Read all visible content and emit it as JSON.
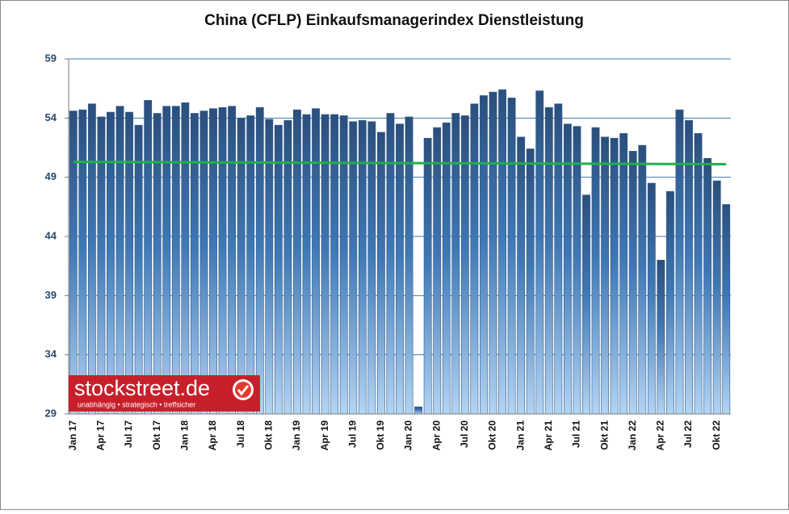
{
  "chart_data": {
    "type": "bar",
    "title": "China (CFLP) Einkaufsmanagerindex Dienstleistung",
    "categories": [
      "Jan 17",
      null,
      null,
      "Apr 17",
      null,
      null,
      "Jul 17",
      null,
      null,
      "Okt 17",
      null,
      null,
      "Jan 18",
      null,
      null,
      "Apr 18",
      null,
      null,
      "Jul 18",
      null,
      null,
      "Okt 18",
      null,
      null,
      "Jan 19",
      null,
      null,
      "Apr 19",
      null,
      null,
      "Jul 19",
      null,
      null,
      "Okt 19",
      null,
      null,
      "Jan 20",
      null,
      null,
      "Apr 20",
      null,
      null,
      "Jul 20",
      null,
      null,
      "Okt 20",
      null,
      null,
      "Jan 21",
      null,
      null,
      "Apr 21",
      null,
      null,
      "Jul 21",
      null,
      null,
      "Okt 21",
      null,
      null,
      "Jan 22",
      null,
      null,
      "Apr 22",
      null,
      null,
      "Jul 22",
      null,
      null,
      "Okt 22",
      null
    ],
    "values": [
      54.6,
      54.7,
      55.2,
      54.1,
      54.5,
      55.0,
      54.5,
      53.4,
      55.5,
      54.4,
      55.0,
      55.0,
      55.3,
      54.4,
      54.6,
      54.8,
      54.9,
      55.0,
      54.0,
      54.2,
      54.9,
      53.9,
      53.4,
      53.8,
      54.7,
      54.3,
      54.8,
      54.3,
      54.3,
      54.2,
      53.7,
      53.8,
      53.7,
      52.8,
      54.4,
      53.5,
      54.1,
      29.6,
      52.3,
      53.2,
      53.6,
      54.4,
      54.2,
      55.2,
      55.9,
      56.2,
      56.4,
      55.7,
      52.4,
      51.4,
      56.3,
      54.9,
      55.2,
      53.5,
      53.3,
      47.5,
      53.2,
      52.4,
      52.3,
      52.7,
      51.2,
      51.7,
      48.5,
      42.0,
      47.8,
      54.7,
      53.8,
      52.7,
      50.6,
      48.7,
      46.7
    ],
    "color": "#2d5b8c",
    "trend": {
      "color": "#1fb04a",
      "values": [
        50.3,
        50.1
      ]
    },
    "ylim": [
      29,
      59
    ],
    "yticks": [
      29,
      34,
      39,
      44,
      49,
      54,
      59
    ],
    "grid": true,
    "watermark": {
      "title": "stockstreet.de",
      "subtitle": "unabhängig • strategisch • treffsicher"
    }
  }
}
